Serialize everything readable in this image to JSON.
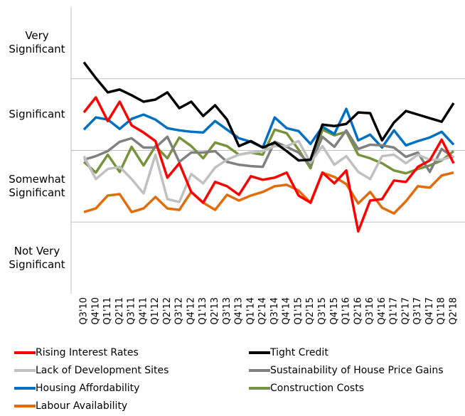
{
  "chart_data": {
    "type": "line",
    "y_band_labels": [
      "Very Significant",
      "Significant",
      "Somewhat Significant",
      "Not Very Significant"
    ],
    "ylim": [
      0,
      4
    ],
    "yticks": [
      1,
      2,
      3
    ],
    "grid": true,
    "categories": [
      "Q3'10",
      "Q4'10",
      "Q1'11",
      "Q2'11",
      "Q3'11",
      "Q4'11",
      "Q1'12",
      "Q2'12",
      "Q3'12",
      "Q4'12",
      "Q1'13",
      "Q2'13",
      "Q3'13",
      "Q4'13",
      "Q1'14",
      "Q2'14",
      "Q3'14",
      "Q4'14",
      "Q1'15",
      "Q2'15",
      "Q3'15",
      "Q4'15",
      "Q1'16",
      "Q2'16",
      "Q3'16",
      "Q4'16",
      "Q1'17",
      "Q2'17",
      "Q3'17",
      "Q4'17",
      "Q1'18",
      "Q2'18"
    ],
    "series": [
      {
        "name": "Rising Interest Rates",
        "color": "#ff0000",
        "values": [
          2.53,
          2.74,
          2.41,
          2.68,
          2.35,
          2.25,
          2.13,
          1.62,
          1.82,
          1.42,
          1.27,
          1.56,
          1.5,
          1.38,
          1.64,
          1.59,
          1.62,
          1.69,
          1.37,
          1.27,
          1.69,
          1.54,
          1.72,
          0.87,
          1.3,
          1.32,
          1.58,
          1.56,
          1.77,
          1.86,
          2.15,
          1.82
        ]
      },
      {
        "name": "Tight Credit",
        "color": "#000000",
        "values": [
          3.23,
          3.01,
          2.81,
          2.85,
          2.77,
          2.68,
          2.71,
          2.81,
          2.59,
          2.68,
          2.48,
          2.63,
          2.43,
          2.06,
          2.13,
          2.04,
          2.11,
          1.99,
          1.86,
          1.87,
          2.36,
          2.34,
          2.37,
          2.53,
          2.52,
          2.14,
          2.39,
          2.55,
          2.5,
          2.45,
          2.4,
          2.66
        ]
      },
      {
        "name": "Lack of Development Sites",
        "color": "#c0c0c0",
        "values": [
          1.92,
          1.6,
          1.74,
          1.77,
          1.6,
          1.4,
          1.94,
          1.32,
          1.28,
          1.67,
          1.54,
          1.76,
          1.87,
          1.94,
          1.97,
          1.99,
          2.06,
          2.06,
          2.13,
          1.83,
          2.06,
          1.8,
          1.92,
          1.7,
          1.6,
          1.92,
          1.94,
          1.82,
          1.94,
          1.87,
          1.87,
          1.92
        ]
      },
      {
        "name": "Sustainability of House Price Gains",
        "color": "#808080",
        "values": [
          1.87,
          1.92,
          1.99,
          2.12,
          2.17,
          2.04,
          2.04,
          2.19,
          1.84,
          1.97,
          1.97,
          1.99,
          1.84,
          1.8,
          1.78,
          1.77,
          2.12,
          2.05,
          1.97,
          1.8,
          2.19,
          2.05,
          2.28,
          2.02,
          2.08,
          2.07,
          2.04,
          1.91,
          1.97,
          1.7,
          2.02,
          1.9
        ]
      },
      {
        "name": "Housing Affordability",
        "color": "#0070c0",
        "values": [
          2.29,
          2.46,
          2.43,
          2.3,
          2.44,
          2.5,
          2.43,
          2.31,
          2.28,
          2.26,
          2.25,
          2.41,
          2.29,
          2.17,
          2.12,
          2.04,
          2.46,
          2.31,
          2.27,
          2.09,
          2.33,
          2.23,
          2.58,
          2.14,
          2.22,
          2.04,
          2.28,
          2.07,
          2.13,
          2.18,
          2.26,
          2.08
        ]
      },
      {
        "name": "Construction Costs",
        "color": "#77933c",
        "values": [
          1.84,
          1.69,
          1.94,
          1.7,
          2.05,
          1.79,
          2.06,
          1.89,
          2.18,
          2.06,
          1.89,
          2.11,
          2.06,
          1.94,
          1.97,
          1.94,
          2.29,
          2.24,
          2.01,
          1.75,
          2.29,
          2.21,
          2.26,
          1.94,
          1.89,
          1.82,
          1.72,
          1.68,
          1.74,
          1.79,
          1.86,
          1.99
        ]
      },
      {
        "name": "Labour Availability",
        "color": "#e36c0a",
        "values": [
          1.14,
          1.19,
          1.37,
          1.39,
          1.14,
          1.19,
          1.35,
          1.19,
          1.17,
          1.42,
          1.27,
          1.17,
          1.38,
          1.3,
          1.37,
          1.42,
          1.5,
          1.52,
          1.44,
          1.27,
          1.69,
          1.63,
          1.53,
          1.26,
          1.42,
          1.2,
          1.12,
          1.29,
          1.5,
          1.48,
          1.65,
          1.69
        ]
      }
    ]
  }
}
